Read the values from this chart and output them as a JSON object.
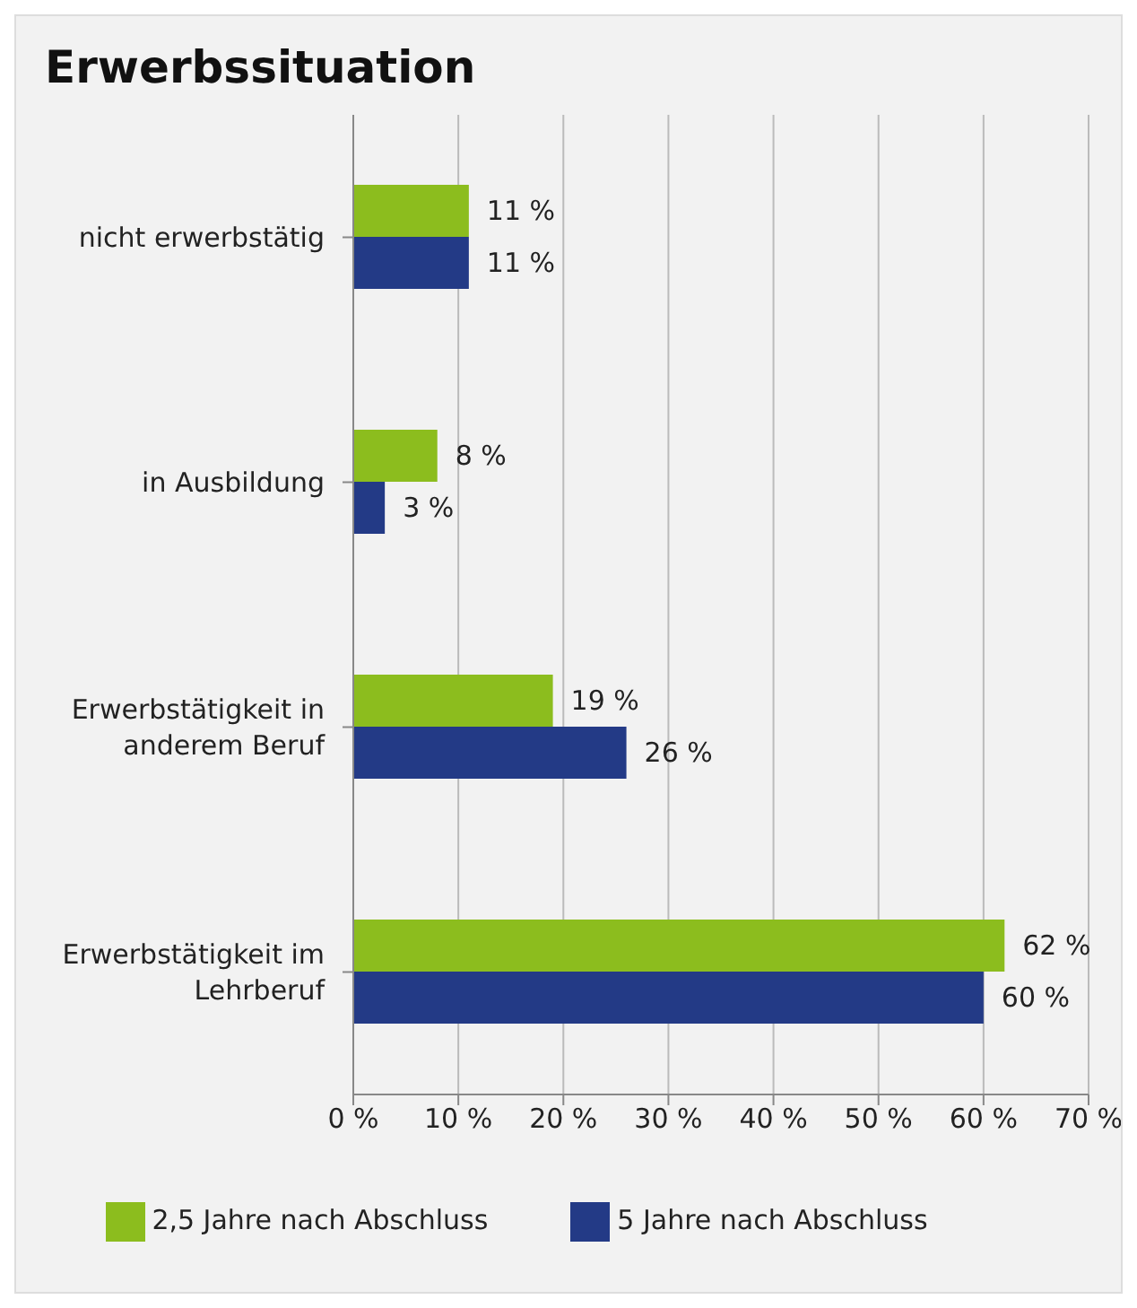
{
  "chart_data": {
    "type": "bar",
    "title": "Erwerbssituation",
    "orientation": "horizontal",
    "categories": [
      "nicht erwerbstätig",
      "in Ausbildung",
      "Erwerbstätigkeit in anderem Beruf",
      "Erwerbstätigkeit im Lehrberuf"
    ],
    "series": [
      {
        "name": "2,5 Jahre nach Abschluss",
        "color": "#8cbd1e",
        "values": [
          11,
          8,
          19,
          62
        ],
        "value_labels": [
          "11 %",
          "8 %",
          "19 %",
          "62 %"
        ]
      },
      {
        "name": "5 Jahre nach Abschluss",
        "color": "#233a86",
        "values": [
          11,
          3,
          26,
          60
        ],
        "value_labels": [
          "11 %",
          "3 %",
          "26 %",
          "60 %"
        ]
      }
    ],
    "xlim": [
      0,
      70
    ],
    "xticks": [
      {
        "value": 0,
        "label": "0 %"
      },
      {
        "value": 10,
        "label": "10 %"
      },
      {
        "value": 20,
        "label": "20 %"
      },
      {
        "value": 30,
        "label": "30 %"
      },
      {
        "value": 40,
        "label": "40 %"
      },
      {
        "value": 50,
        "label": "50 %"
      },
      {
        "value": 60,
        "label": "60 %"
      },
      {
        "value": 70,
        "label": "70 %"
      }
    ],
    "grid": "x",
    "legend": "bottom"
  }
}
